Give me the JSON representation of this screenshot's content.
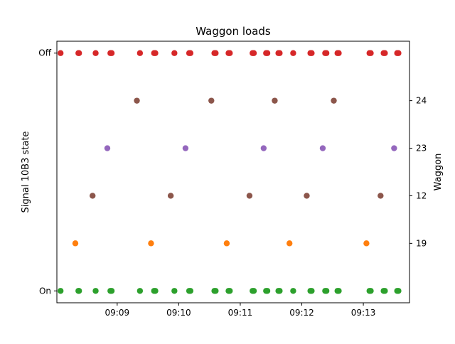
{
  "chart_data": {
    "type": "scatter",
    "title": "Waggon loads",
    "ylabel_left": "Signal 10B3 state",
    "ylabel_right": "Waggon",
    "x_ticks": [
      "09:09",
      "09:10",
      "09:11",
      "09:12",
      "09:13"
    ],
    "x_tick_minutes": [
      9,
      10,
      11,
      12,
      13
    ],
    "x_range_minutes": [
      8.02,
      13.75
    ],
    "left_y_ticks": [
      {
        "label": "Off",
        "level": 1
      },
      {
        "label": "On",
        "level": 0
      }
    ],
    "right_y_ticks": [
      {
        "label": "24",
        "level": 0.8
      },
      {
        "label": "23",
        "level": 0.6
      },
      {
        "label": "12",
        "level": 0.4
      },
      {
        "label": "19",
        "level": 0.2
      }
    ],
    "y_range_level": [
      -0.05,
      1.05
    ],
    "signal_events_minutes": [
      8.08,
      8.37,
      8.38,
      8.65,
      8.89,
      8.91,
      9.37,
      9.6,
      9.62,
      9.93,
      10.17,
      10.19,
      10.58,
      10.6,
      10.81,
      10.83,
      11.2,
      11.22,
      11.42,
      11.44,
      11.62,
      11.64,
      11.86,
      12.14,
      12.16,
      12.38,
      12.4,
      12.58,
      12.6,
      13.1,
      13.12,
      13.33,
      13.35,
      13.55,
      13.57
    ],
    "series": [
      {
        "name": "",
        "color": "#d62728",
        "level": 1,
        "x_minutes": "signal",
        "role": "signal-off"
      },
      {
        "name": "",
        "color": "#2ca02c",
        "level": 0,
        "x_minutes": "signal",
        "role": "signal-on"
      },
      {
        "name": "24",
        "color": "#8c564b",
        "level": 0.8,
        "x_minutes": [
          9.32,
          10.53,
          11.56,
          12.52
        ]
      },
      {
        "name": "23",
        "color": "#9467bd",
        "level": 0.6,
        "x_minutes": [
          8.84,
          10.11,
          11.38,
          12.34,
          13.5
        ]
      },
      {
        "name": "12",
        "color": "#8c564b",
        "level": 0.4,
        "x_minutes": [
          8.6,
          9.87,
          11.15,
          12.08,
          13.28
        ]
      },
      {
        "name": "19",
        "color": "#ff7f0e",
        "level": 0.2,
        "x_minutes": [
          8.32,
          9.55,
          10.78,
          11.8,
          13.05
        ]
      }
    ]
  }
}
